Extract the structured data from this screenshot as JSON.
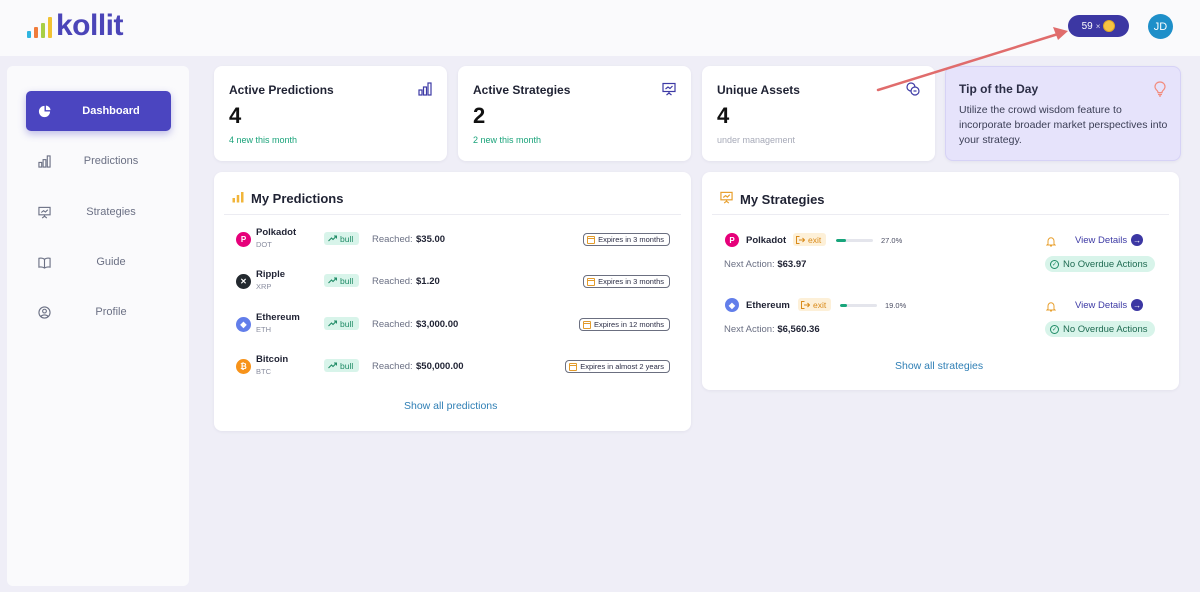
{
  "header": {
    "logo_text": "kollit",
    "logo_bar_colors": [
      "#2fb5e0",
      "#f07c3b",
      "#a8cf45",
      "#f1c232"
    ],
    "coins": {
      "count": "59",
      "multiplier": "×"
    },
    "avatar_initials": "JD"
  },
  "sidebar": {
    "items": [
      {
        "label": "Dashboard",
        "icon": "pie-chart-icon",
        "active": true
      },
      {
        "label": "Predictions",
        "icon": "bar-chart-icon",
        "active": false
      },
      {
        "label": "Strategies",
        "icon": "presentation-icon",
        "active": false
      },
      {
        "label": "Guide",
        "icon": "book-icon",
        "active": false
      },
      {
        "label": "Profile",
        "icon": "user-circle-icon",
        "active": false
      }
    ]
  },
  "stats": [
    {
      "title": "Active Predictions",
      "value": "4",
      "sub": "4 new this month",
      "icon": "bar-chart-icon"
    },
    {
      "title": "Active Strategies",
      "value": "2",
      "sub": "2 new this month",
      "icon": "presentation-icon"
    },
    {
      "title": "Unique Assets",
      "value": "4",
      "sub": "under management",
      "icon": "coins-icon"
    }
  ],
  "tip": {
    "title": "Tip of the Day",
    "text": "Utilize the crowd wisdom feature to incorporate broader market perspectives into your strategy."
  },
  "predictions": {
    "title": "My Predictions",
    "reached_label": "Reached:",
    "direction_label": "bull",
    "rows": [
      {
        "name": "Polkadot",
        "symbol": "DOT",
        "reached": "$35.00",
        "expires": "Expires in 3 months"
      },
      {
        "name": "Ripple",
        "symbol": "XRP",
        "reached": "$1.20",
        "expires": "Expires in 3 months"
      },
      {
        "name": "Ethereum",
        "symbol": "ETH",
        "reached": "$3,000.00",
        "expires": "Expires in 12 months"
      },
      {
        "name": "Bitcoin",
        "symbol": "BTC",
        "reached": "$50,000.00",
        "expires": "Expires in almost 2 years"
      }
    ],
    "show_all": "Show all predictions"
  },
  "strategies": {
    "title": "My Strategies",
    "action_label": "exit",
    "next_action_label": "Next Action:",
    "view_details": "View Details",
    "overdue_label": "No Overdue Actions",
    "rows": [
      {
        "name": "Polkadot",
        "progress_pct": "27.0%",
        "progress": 0.27,
        "next_action": "$63.97"
      },
      {
        "name": "Ethereum",
        "progress_pct": "19.0%",
        "progress": 0.19,
        "next_action": "$6,560.36"
      }
    ],
    "show_all": "Show all strategies"
  },
  "colors": {
    "brand": "#4b45c0",
    "polkadot": "#e6007a",
    "ripple": "#23292f",
    "ethereum": "#627eea",
    "bitcoin": "#f7931a",
    "annotation_arrow": "#e06c6c"
  }
}
